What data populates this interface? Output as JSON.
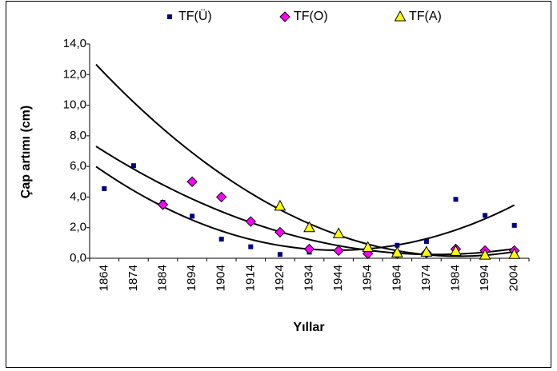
{
  "chart_data": {
    "type": "scatter",
    "y_label": "Çap artımı (cm)",
    "x_label": "Yıllar",
    "categories": [
      "1864",
      "1874",
      "1884",
      "1894",
      "1904",
      "1914",
      "1924",
      "1934",
      "1944",
      "1954",
      "1964",
      "1974",
      "1984",
      "1994",
      "2004"
    ],
    "series": [
      {
        "name": "TF(Ü)",
        "color": "#000080",
        "marker": "square",
        "values": [
          4.55,
          6.05,
          3.65,
          2.75,
          1.25,
          0.75,
          0.25,
          0.4,
          0.45,
          0.7,
          0.85,
          1.1,
          3.85,
          2.8,
          2.15
        ]
      },
      {
        "name": "TF(O)",
        "color": "#ff00ff",
        "marker": "diamond",
        "values": [
          null,
          null,
          3.5,
          5.0,
          4.0,
          2.4,
          1.7,
          0.6,
          0.5,
          0.3,
          0.3,
          0.35,
          0.6,
          0.5,
          0.5
        ]
      },
      {
        "name": "TF(A)",
        "color": "#ffff00",
        "marker": "triangle",
        "values": [
          null,
          null,
          null,
          null,
          null,
          null,
          3.4,
          2.0,
          1.6,
          0.7,
          0.35,
          0.4,
          0.45,
          0.2,
          0.25
        ]
      }
    ],
    "trendline": "polynomial",
    "ylim": [
      0,
      14
    ],
    "yticks": [
      {
        "value": 0,
        "label": "0,0"
      },
      {
        "value": 2,
        "label": "2,0"
      },
      {
        "value": 4,
        "label": "4,0"
      },
      {
        "value": 6,
        "label": "6,0"
      },
      {
        "value": 8,
        "label": "8,0"
      },
      {
        "value": 10,
        "label": "10,0"
      },
      {
        "value": 12,
        "label": "12,0"
      },
      {
        "value": 14,
        "label": "14,0"
      }
    ],
    "grid": false,
    "legend": "top"
  }
}
